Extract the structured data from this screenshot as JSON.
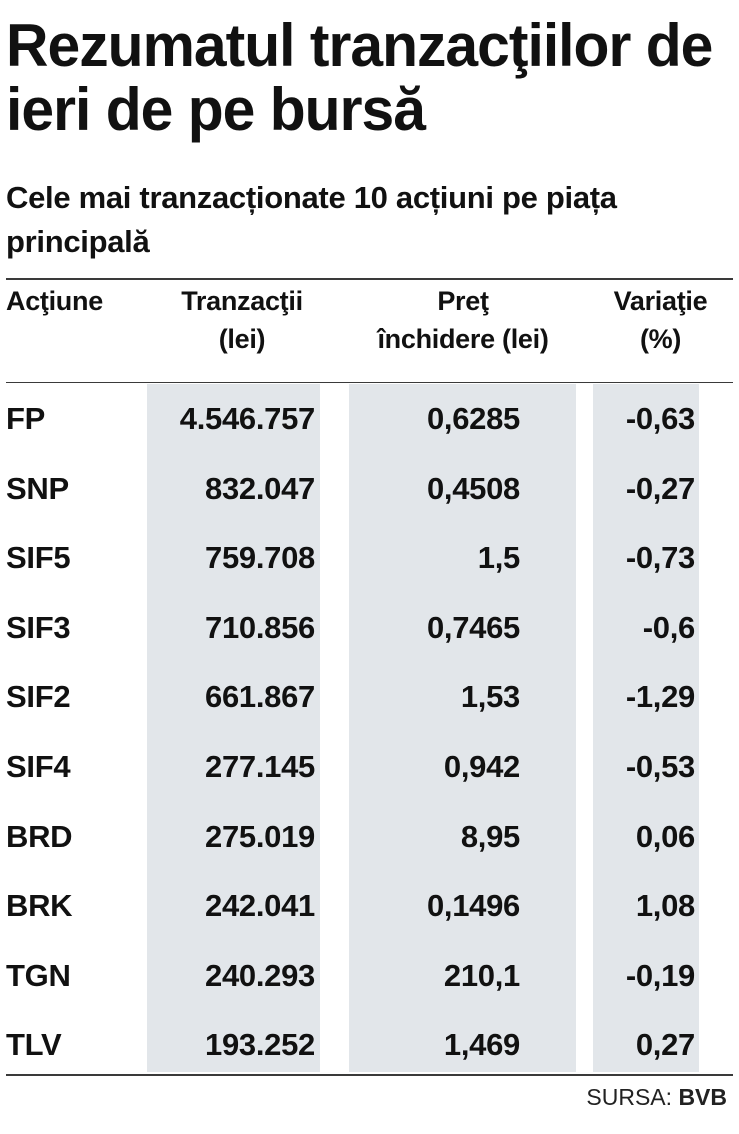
{
  "title": "Rezumatul tranzacţiilor de ieri de pe bursă",
  "subtitle": "Cele mai tranzacționate 10 acțiuni pe piața principală",
  "columns": [
    {
      "line1": "Acţiune",
      "line2": ""
    },
    {
      "line1": "Tranzacţii",
      "line2": "(lei)"
    },
    {
      "line1": "Preţ",
      "line2": "închidere (lei)"
    },
    {
      "line1": "Variaţie",
      "line2": "(%)"
    }
  ],
  "rows": [
    {
      "symbol": "FP",
      "value": "4.546.757",
      "price": "0,6285",
      "change": "-0,63"
    },
    {
      "symbol": "SNP",
      "value": "832.047",
      "price": "0,4508",
      "change": "-0,27"
    },
    {
      "symbol": "SIF5",
      "value": "759.708",
      "price": "1,5",
      "change": "-0,73"
    },
    {
      "symbol": "SIF3",
      "value": "710.856",
      "price": "0,7465",
      "change": "-0,6"
    },
    {
      "symbol": "SIF2",
      "value": "661.867",
      "price": "1,53",
      "change": "-1,29"
    },
    {
      "symbol": "SIF4",
      "value": "277.145",
      "price": "0,942",
      "change": "-0,53"
    },
    {
      "symbol": "BRD",
      "value": "275.019",
      "price": "8,95",
      "change": "0,06"
    },
    {
      "symbol": "BRK",
      "value": "242.041",
      "price": "0,1496",
      "change": "1,08"
    },
    {
      "symbol": "TGN",
      "value": "240.293",
      "price": "210,1",
      "change": "-0,19"
    },
    {
      "symbol": "TLV",
      "value": "193.252",
      "price": "1,469",
      "change": "0,27"
    }
  ],
  "source": {
    "label": "SURSA:",
    "name": "BVB"
  },
  "colors": {
    "column_shading": "#e2e6ea",
    "text": "#111111"
  },
  "chart_data": {
    "type": "table",
    "title": "Rezumatul tranzacţiilor de ieri de pe bursă",
    "subtitle": "Cele mai tranzacționate 10 acțiuni pe piața principală",
    "headers": [
      "Acţiune",
      "Tranzacţii (lei)",
      "Preţ închidere (lei)",
      "Variaţie (%)"
    ],
    "rows": [
      [
        "FP",
        4546757,
        0.6285,
        -0.63
      ],
      [
        "SNP",
        832047,
        0.4508,
        -0.27
      ],
      [
        "SIF5",
        759708,
        1.5,
        -0.73
      ],
      [
        "SIF3",
        710856,
        0.7465,
        -0.6
      ],
      [
        "SIF2",
        661867,
        1.53,
        -1.29
      ],
      [
        "SIF4",
        277145,
        0.942,
        -0.53
      ],
      [
        "BRD",
        275019,
        8.95,
        0.06
      ],
      [
        "BRK",
        242041,
        0.1496,
        1.08
      ],
      [
        "TGN",
        240293,
        210.1,
        -0.19
      ],
      [
        "TLV",
        193252,
        1.469,
        0.27
      ]
    ]
  }
}
